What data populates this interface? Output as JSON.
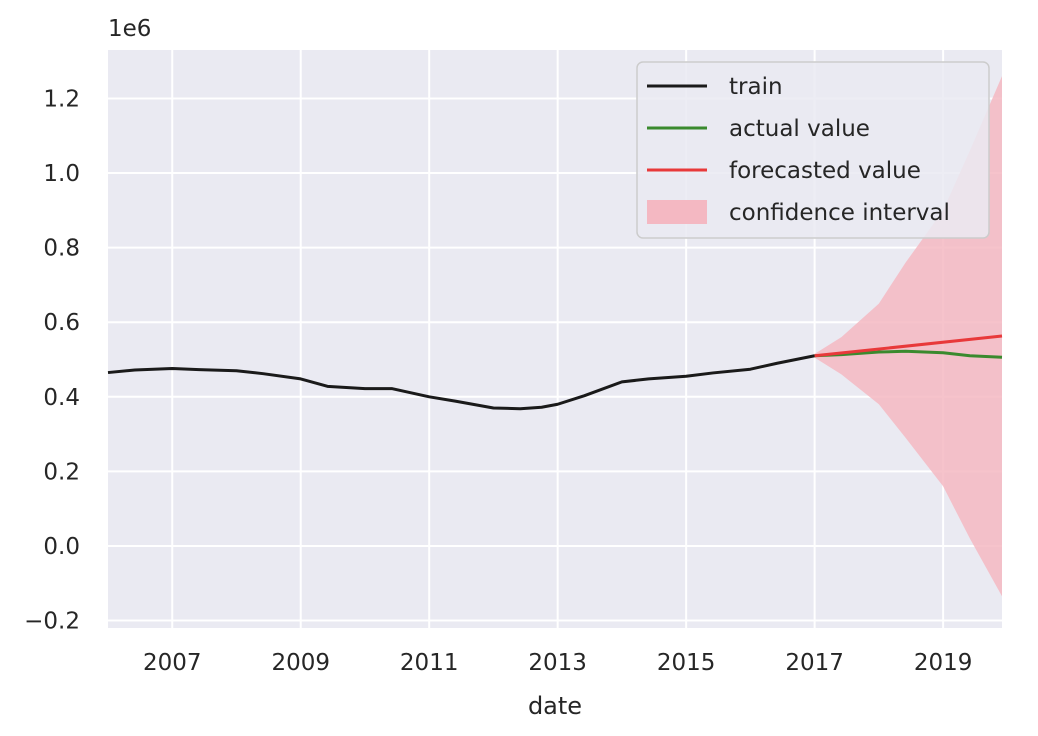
{
  "chart_data": {
    "type": "line",
    "xlabel": "date",
    "ylabel": "",
    "y_offset_label": "1e6",
    "xlim": [
      "2006-01",
      "2019-12"
    ],
    "ylim": [
      -0.22,
      1.33
    ],
    "y_scale_note": "values in units of 1e6",
    "x_ticks": [
      "2007",
      "2009",
      "2011",
      "2013",
      "2015",
      "2017",
      "2019"
    ],
    "y_ticks": [
      "−0.2",
      "0.0",
      "0.2",
      "0.4",
      "0.6",
      "0.8",
      "1.0",
      "1.2"
    ],
    "y_tick_values": [
      -0.2,
      0.0,
      0.2,
      0.4,
      0.6,
      0.8,
      1.0,
      1.2
    ],
    "grid": true,
    "legend_position": "top-right",
    "series": [
      {
        "name": "train",
        "color": "#1a1a1a",
        "points": [
          [
            "2006-01",
            0.465
          ],
          [
            "2006-06",
            0.472
          ],
          [
            "2007-01",
            0.476
          ],
          [
            "2007-06",
            0.473
          ],
          [
            "2008-01",
            0.47
          ],
          [
            "2008-06",
            0.462
          ],
          [
            "2009-01",
            0.448
          ],
          [
            "2009-06",
            0.428
          ],
          [
            "2010-01",
            0.422
          ],
          [
            "2010-06",
            0.422
          ],
          [
            "2011-01",
            0.4
          ],
          [
            "2011-06",
            0.388
          ],
          [
            "2012-01",
            0.37
          ],
          [
            "2012-06",
            0.368
          ],
          [
            "2012-10",
            0.372
          ],
          [
            "2013-01",
            0.38
          ],
          [
            "2013-06",
            0.403
          ],
          [
            "2014-01",
            0.44
          ],
          [
            "2014-06",
            0.448
          ],
          [
            "2015-01",
            0.455
          ],
          [
            "2015-06",
            0.464
          ],
          [
            "2016-01",
            0.474
          ],
          [
            "2016-06",
            0.49
          ],
          [
            "2017-01",
            0.51
          ]
        ]
      },
      {
        "name": "actual value",
        "color": "#3a8a2e",
        "points": [
          [
            "2017-01",
            0.51
          ],
          [
            "2017-06",
            0.513
          ],
          [
            "2018-01",
            0.52
          ],
          [
            "2018-06",
            0.522
          ],
          [
            "2019-01",
            0.518
          ],
          [
            "2019-06",
            0.51
          ],
          [
            "2019-12",
            0.506
          ]
        ]
      },
      {
        "name": "forecasted value",
        "color": "#e8393a",
        "points": [
          [
            "2017-01",
            0.51
          ],
          [
            "2019-12",
            0.563
          ]
        ]
      }
    ],
    "confidence_interval": {
      "name": "confidence interval",
      "color": "#f4b8c2",
      "upper": [
        [
          "2017-01",
          0.515
        ],
        [
          "2017-06",
          0.56
        ],
        [
          "2018-01",
          0.65
        ],
        [
          "2018-06",
          0.76
        ],
        [
          "2019-01",
          0.9
        ],
        [
          "2019-06",
          1.06
        ],
        [
          "2019-12",
          1.26
        ]
      ],
      "lower": [
        [
          "2017-01",
          0.505
        ],
        [
          "2017-06",
          0.46
        ],
        [
          "2018-01",
          0.38
        ],
        [
          "2018-06",
          0.29
        ],
        [
          "2019-01",
          0.16
        ],
        [
          "2019-06",
          0.02
        ],
        [
          "2019-12",
          -0.135
        ]
      ]
    }
  }
}
